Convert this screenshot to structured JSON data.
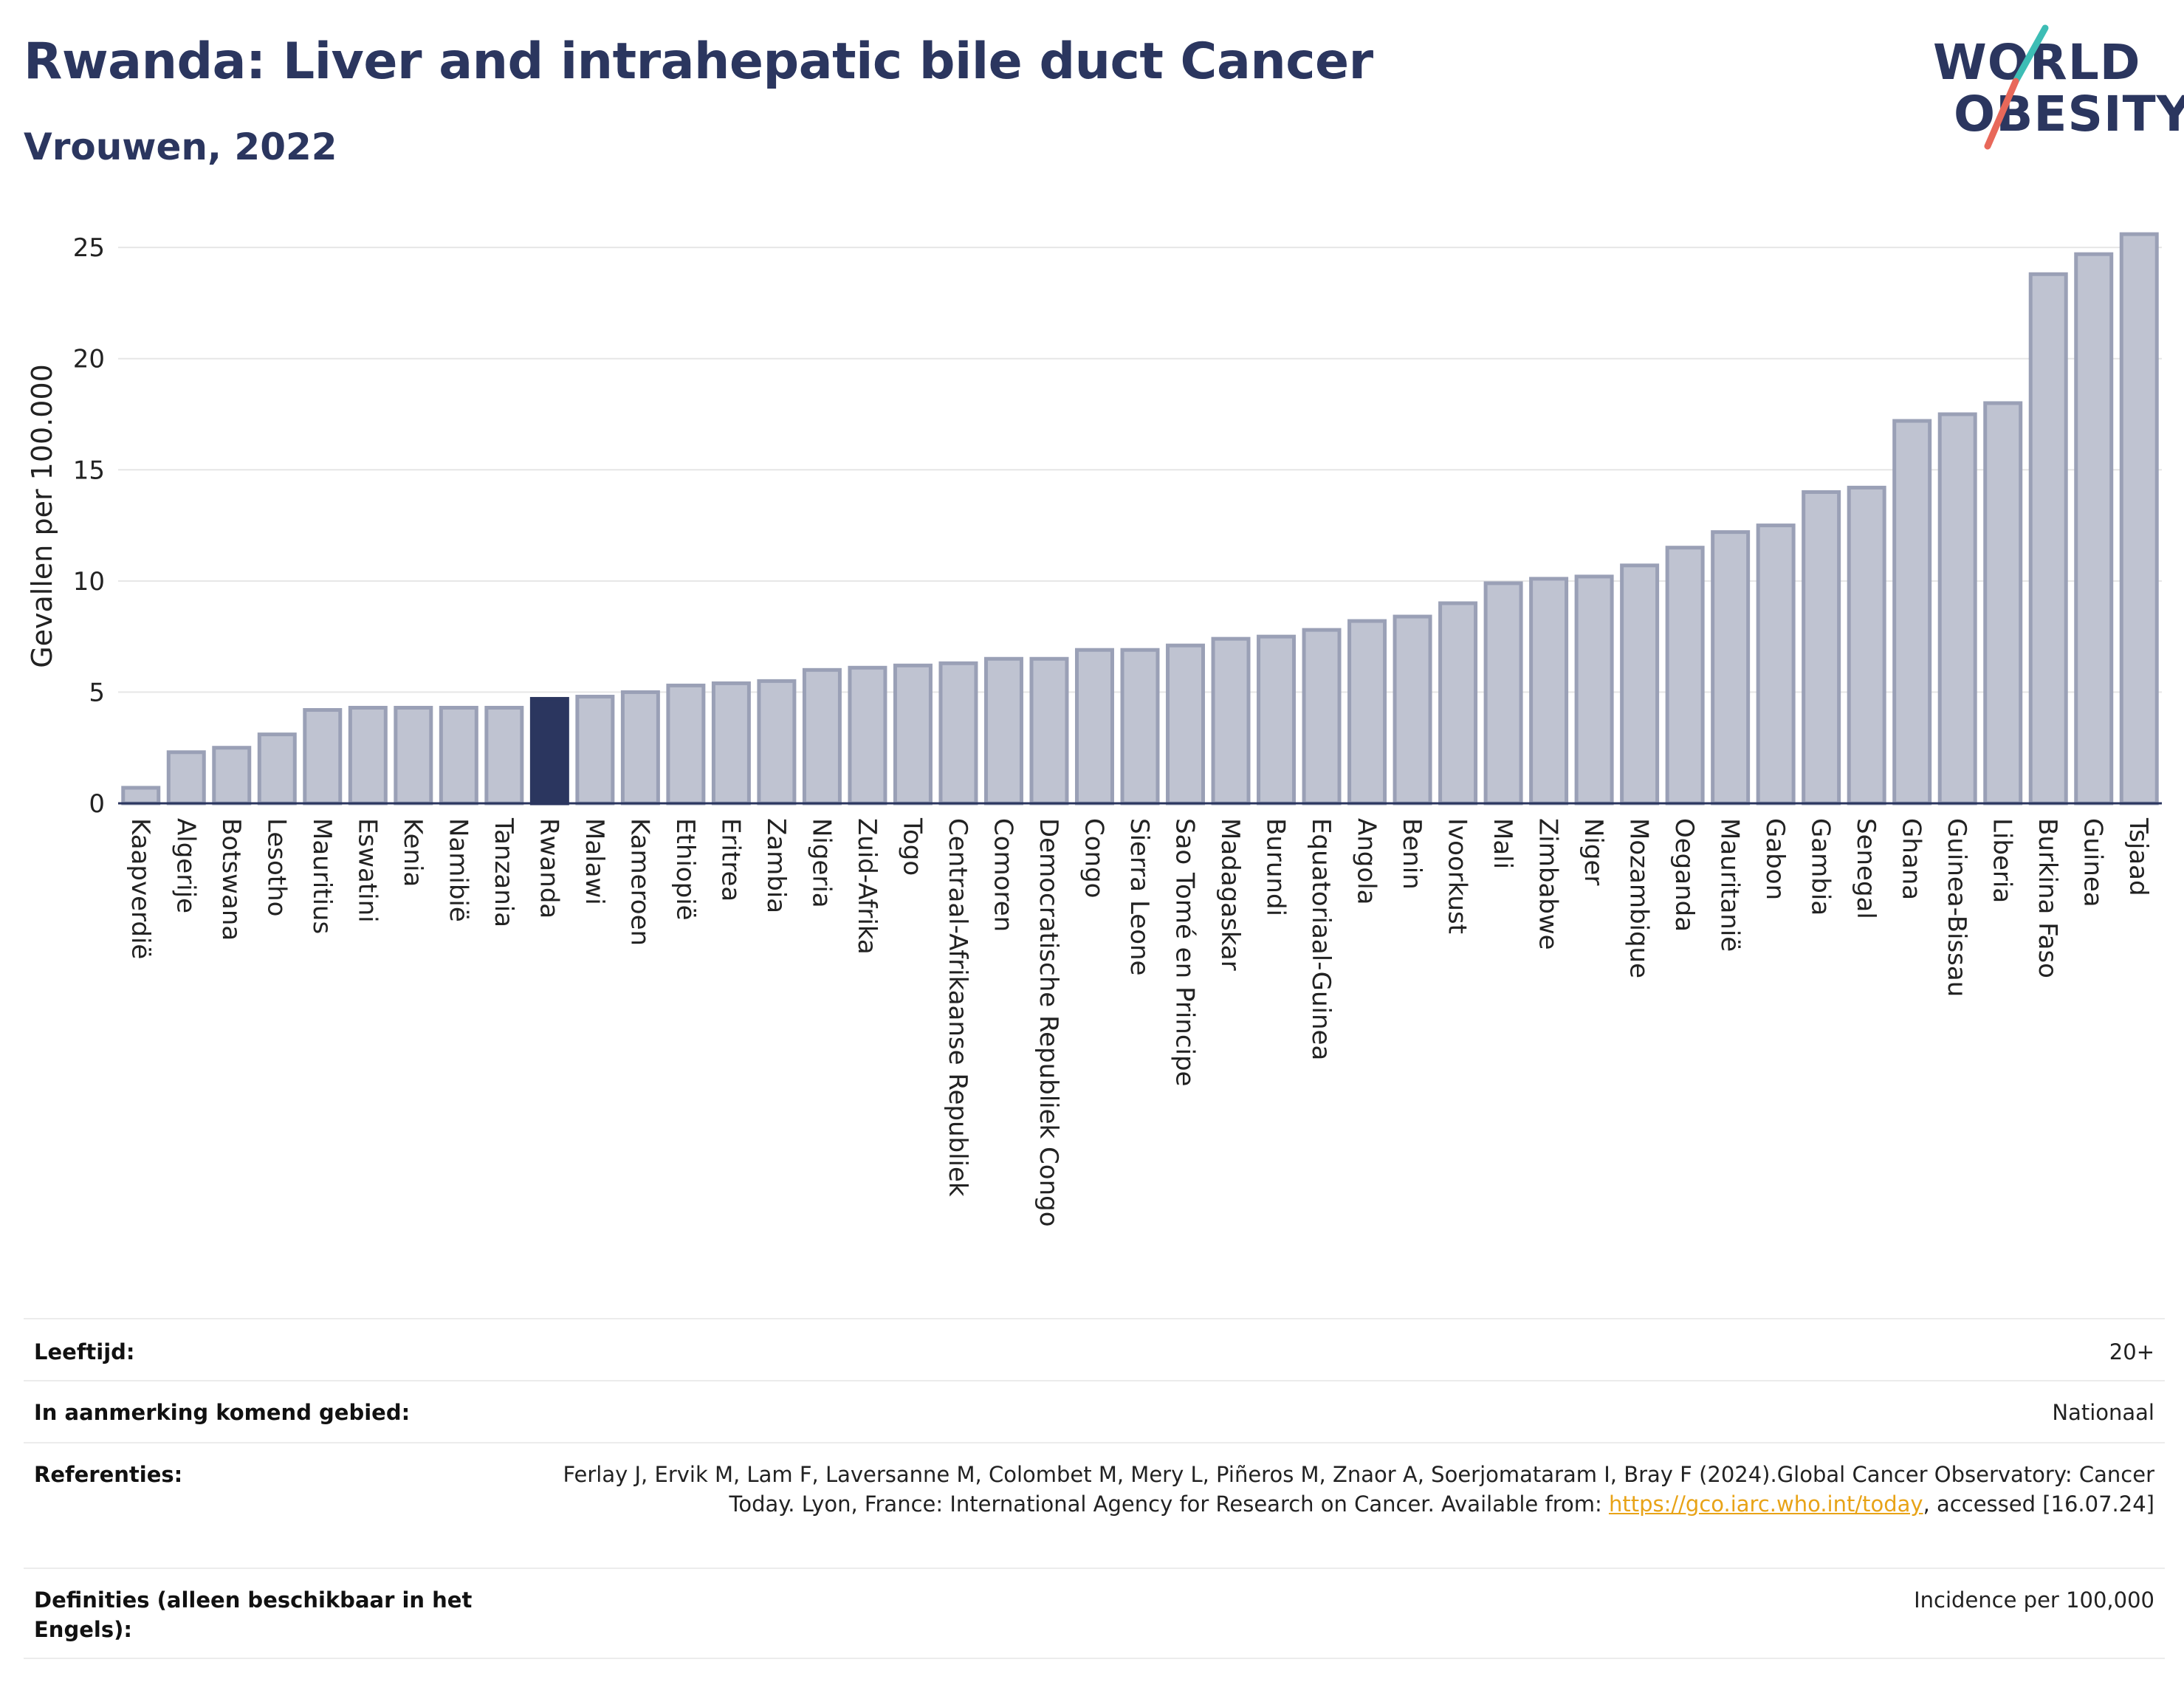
{
  "title": "Rwanda: Liver and intrahepatic bile duct Cancer",
  "subtitle": "Vrouwen, 2022",
  "logo": {
    "line1": "WORLD",
    "line2": "OBESITY",
    "colors": [
      "#2b365f",
      "#3dbdb5",
      "#e8685a"
    ]
  },
  "colors": {
    "bar": "#bfc3d1",
    "bar_border": "#9aa0b6",
    "highlight": "#2b365f",
    "title": "#2b365f",
    "grid": "#e6e6e6",
    "link": "#e8a317"
  },
  "chart_data": {
    "type": "bar",
    "ylabel": "Gevallen per 100.000",
    "ylim": [
      0,
      26.5
    ],
    "yticks": [
      0,
      5,
      10,
      15,
      20,
      25
    ],
    "grid": true,
    "highlight": "Rwanda",
    "categories": [
      "Kaapverdië",
      "Algerije",
      "Botswana",
      "Lesotho",
      "Mauritius",
      "Eswatini",
      "Kenia",
      "Namibië",
      "Tanzania",
      "Rwanda",
      "Malawi",
      "Kameroen",
      "Ethiopië",
      "Eritrea",
      "Zambia",
      "Nigeria",
      "Zuid-Afrika",
      "Togo",
      "Centraal-Afrikaanse Republiek",
      "Comoren",
      "Democratische Republiek Congo",
      "Congo",
      "Sierra Leone",
      "Sao Tomé en Principe",
      "Madagaskar",
      "Burundi",
      "Equatoriaal-Guinea",
      "Angola",
      "Benin",
      "Ivoorkust",
      "Mali",
      "Zimbabwe",
      "Niger",
      "Mozambique",
      "Oeganda",
      "Mauritanië",
      "Gabon",
      "Gambia",
      "Senegal",
      "Ghana",
      "Guinea-Bissau",
      "Liberia",
      "Burkina Faso",
      "Guinea",
      "Tsjaad"
    ],
    "values": [
      0.7,
      2.3,
      2.5,
      3.1,
      4.2,
      4.3,
      4.3,
      4.3,
      4.3,
      4.7,
      4.8,
      5.0,
      5.3,
      5.4,
      5.5,
      6.0,
      6.1,
      6.2,
      6.3,
      6.5,
      6.5,
      6.9,
      6.9,
      7.1,
      7.4,
      7.5,
      7.8,
      8.2,
      8.4,
      9.0,
      9.9,
      10.1,
      10.2,
      10.7,
      11.5,
      12.2,
      12.5,
      14.0,
      14.2,
      17.2,
      17.5,
      18.0,
      23.8,
      24.7,
      25.6
    ]
  },
  "meta": [
    {
      "label": "Leeftijd:",
      "value": "20+"
    },
    {
      "label": "In aanmerking komend gebied:",
      "value": "Nationaal"
    },
    {
      "label": "Referenties:",
      "value_before": "Ferlay J, Ervik M, Lam F, Laversanne M, Colombet M, Mery L, Piñeros M, Znaor A, Soerjomataram I, Bray F (2024).Global Cancer Observatory: Cancer Today. Lyon, France: International Agency for Research on Cancer. Available from: ",
      "link": "https://gco.iarc.who.int/today",
      "value_after": ", accessed [16.07.24]"
    },
    {
      "label": "Definities (alleen beschikbaar in het Engels):",
      "value": "Incidence per 100,000"
    }
  ]
}
